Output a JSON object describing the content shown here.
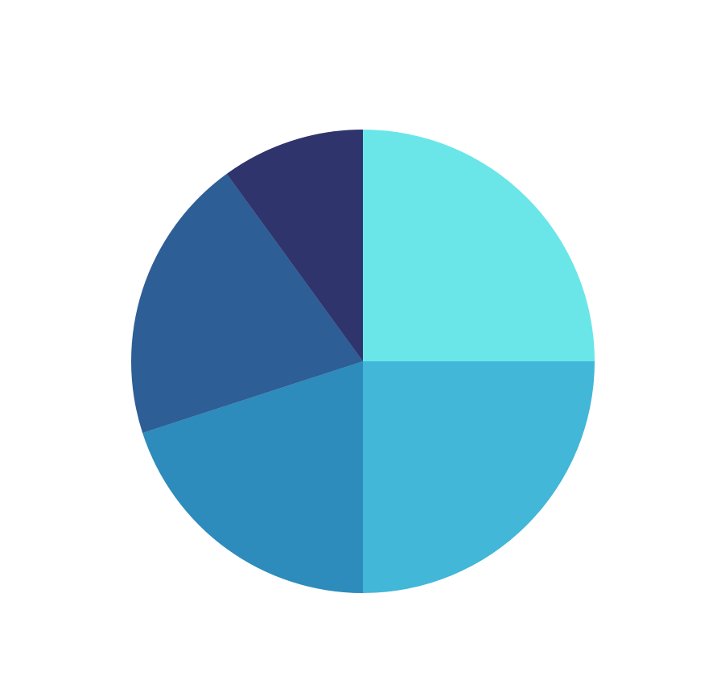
{
  "chart_data": {
    "type": "pie",
    "start_angle_deg": 90,
    "direction": "clockwise",
    "slices": [
      {
        "value": 25,
        "color": "#6ae6e9"
      },
      {
        "value": 25,
        "color": "#42b7d7"
      },
      {
        "value": 20,
        "color": "#2d8cbb"
      },
      {
        "value": 20,
        "color": "#2e5e96"
      },
      {
        "value": 10,
        "color": "#30346d"
      }
    ],
    "legend": "none",
    "title": ""
  }
}
